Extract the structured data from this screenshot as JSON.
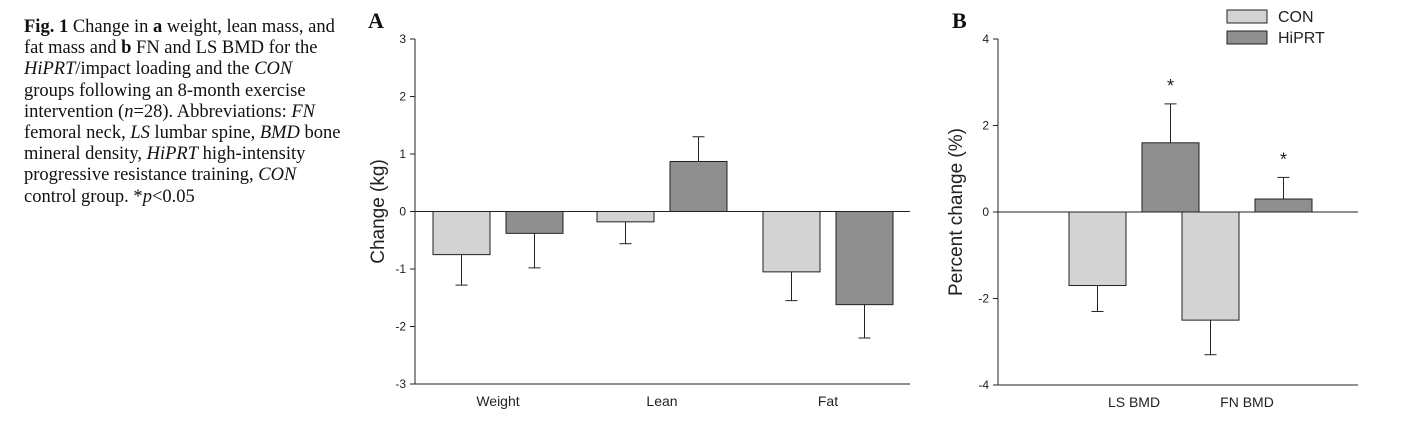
{
  "caption": {
    "fig": "Fig. 1",
    "t1": " Change in ",
    "a": "a",
    "t2": " weight, lean mass, and fat mass and ",
    "b": "b",
    "t3": " FN and LS BMD for the ",
    "hiprt1": "HiPRT",
    "t4": "/impact loading and the ",
    "con1": "CON",
    "t5": " groups following an 8-month exercise intervention (",
    "n": "n",
    "t6": "=28). Abbreviations: ",
    "fn": "FN",
    "t7": " femoral neck, ",
    "ls": "LS",
    "t8": " lumbar spine, ",
    "bmd": "BMD",
    "t9": " bone mineral density, ",
    "hiprt2": "HiPRT",
    "t10": " high-intensity progressive resistance training, ",
    "con2": "CON",
    "t11": " control group. *",
    "p": "p",
    "t12": "<0.05"
  },
  "legend": [
    {
      "label": "CON",
      "color": "#d3d3d3"
    },
    {
      "label": "HiPRT",
      "color": "#8f8f8f"
    }
  ],
  "chart_data": [
    {
      "panel": "A",
      "type": "bar",
      "ylabel": "Change (kg)",
      "xlabel": "",
      "ylim": [
        -3,
        3
      ],
      "yticks": [
        "3",
        "2",
        "1",
        "0",
        "-1",
        "-2",
        "-3"
      ],
      "categories": [
        "Weight",
        "Lean",
        "Fat"
      ],
      "series": [
        {
          "name": "CON",
          "values": [
            -0.75,
            -0.18,
            -1.05
          ],
          "errors": [
            0.53,
            0.38,
            0.5
          ],
          "color": "#d3d3d3"
        },
        {
          "name": "HiPRT",
          "values": [
            -0.38,
            0.87,
            -1.62
          ],
          "errors": [
            0.6,
            0.43,
            0.58
          ],
          "color": "#8f8f8f"
        }
      ],
      "significance": []
    },
    {
      "panel": "B",
      "type": "bar",
      "ylabel": "Percent change (%)",
      "xlabel": "",
      "ylim": [
        -4,
        4
      ],
      "yticks": [
        "4",
        "2",
        "0",
        "-2",
        "-4"
      ],
      "categories": [
        "LS BMD",
        "FN BMD"
      ],
      "series": [
        {
          "name": "CON",
          "values": [
            -1.7,
            -2.5
          ],
          "errors": [
            0.6,
            0.8
          ],
          "color": "#d3d3d3"
        },
        {
          "name": "HiPRT",
          "values": [
            1.6,
            0.3
          ],
          "errors": [
            0.9,
            0.5
          ],
          "color": "#8f8f8f"
        }
      ],
      "significance": [
        {
          "category": "LS BMD",
          "series": "HiPRT",
          "mark": "*"
        },
        {
          "category": "FN BMD",
          "series": "HiPRT",
          "mark": "*"
        }
      ]
    }
  ]
}
